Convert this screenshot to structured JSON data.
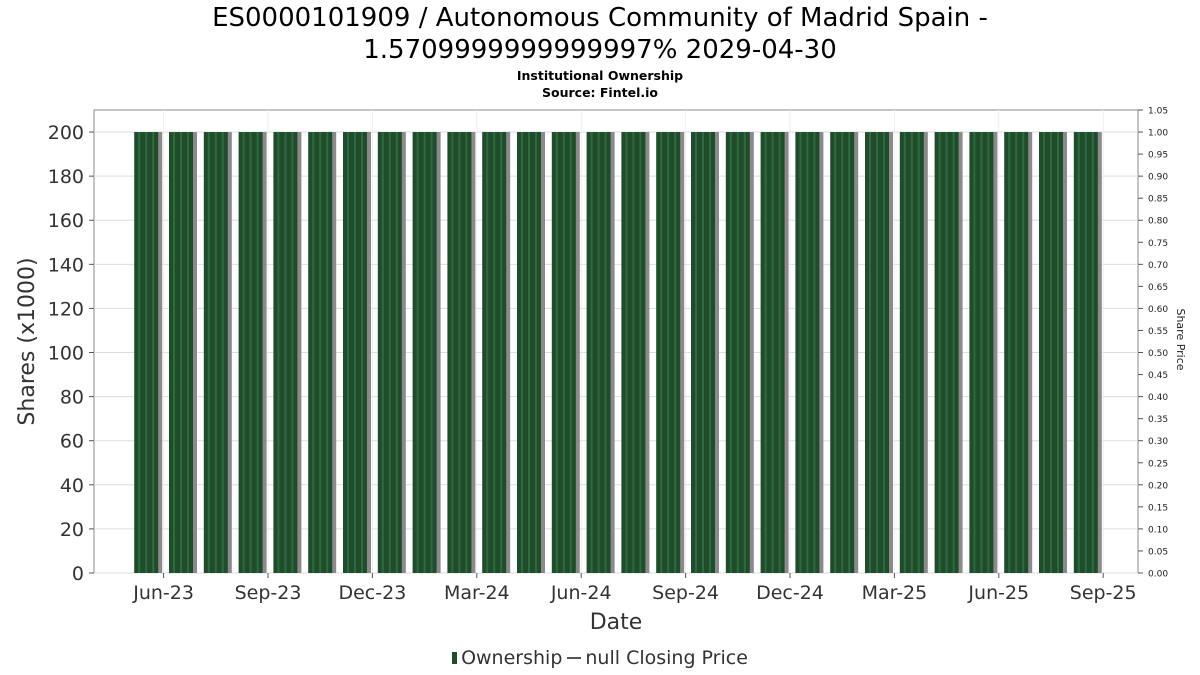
{
  "title_line1": "ES0000101909 / Autonomous Community of Madrid Spain -",
  "title_line2": "1.5709999999999997% 2029-04-30",
  "subtitle": "Institutional Ownership",
  "source": "Source: Fintel.io",
  "legend": {
    "ownership_label": "Ownership",
    "price_label": "null Closing Price"
  },
  "colors": {
    "bar_fill": "#1f4d2c",
    "bar_stripe": "#2e6a3d",
    "bar_shadow": "#8a8a8a",
    "grid": "#dddddd",
    "axis_text": "#333333"
  },
  "chart_data": {
    "type": "bar",
    "title": "ES0000101909 / Autonomous Community of Madrid Spain - 1.5709999999999997% 2029-04-30",
    "subtitle": "Institutional Ownership",
    "xlabel": "Date",
    "ylabel": "Shares (x1000)",
    "y2label": "Share Price",
    "ylim": [
      0,
      210
    ],
    "y2lim": [
      0,
      1.05
    ],
    "yticks": [
      0,
      20,
      40,
      60,
      80,
      100,
      120,
      140,
      160,
      180,
      200
    ],
    "y2ticks": [
      "0.00",
      "0.05",
      "0.10",
      "0.15",
      "0.20",
      "0.25",
      "0.30",
      "0.35",
      "0.40",
      "0.45",
      "0.50",
      "0.55",
      "0.60",
      "0.65",
      "0.70",
      "0.75",
      "0.80",
      "0.85",
      "0.90",
      "0.95",
      "1.00",
      "1.05"
    ],
    "xtick_labels": [
      "Jun-23",
      "Sep-23",
      "Dec-23",
      "Mar-24",
      "Jun-24",
      "Sep-24",
      "Dec-24",
      "Mar-25",
      "Jun-25",
      "Sep-25"
    ],
    "x_start": "2023-04",
    "x_end": "2025-10",
    "series": [
      {
        "name": "Ownership",
        "x": [
          "2023-05",
          "2023-06",
          "2023-07",
          "2023-08",
          "2023-09",
          "2023-10",
          "2023-11",
          "2023-12",
          "2024-01",
          "2024-02",
          "2024-03",
          "2024-04",
          "2024-05",
          "2024-06",
          "2024-07",
          "2024-08",
          "2024-09",
          "2024-10",
          "2024-11",
          "2024-12",
          "2025-01",
          "2025-02",
          "2025-03",
          "2025-04",
          "2025-05",
          "2025-06",
          "2025-07",
          "2025-08"
        ],
        "values": [
          200,
          200,
          200,
          200,
          200,
          200,
          200,
          200,
          200,
          200,
          200,
          200,
          200,
          200,
          200,
          200,
          200,
          200,
          200,
          200,
          200,
          200,
          200,
          200,
          200,
          200,
          200,
          200
        ]
      }
    ],
    "grid": true,
    "legend_position": "bottom"
  }
}
